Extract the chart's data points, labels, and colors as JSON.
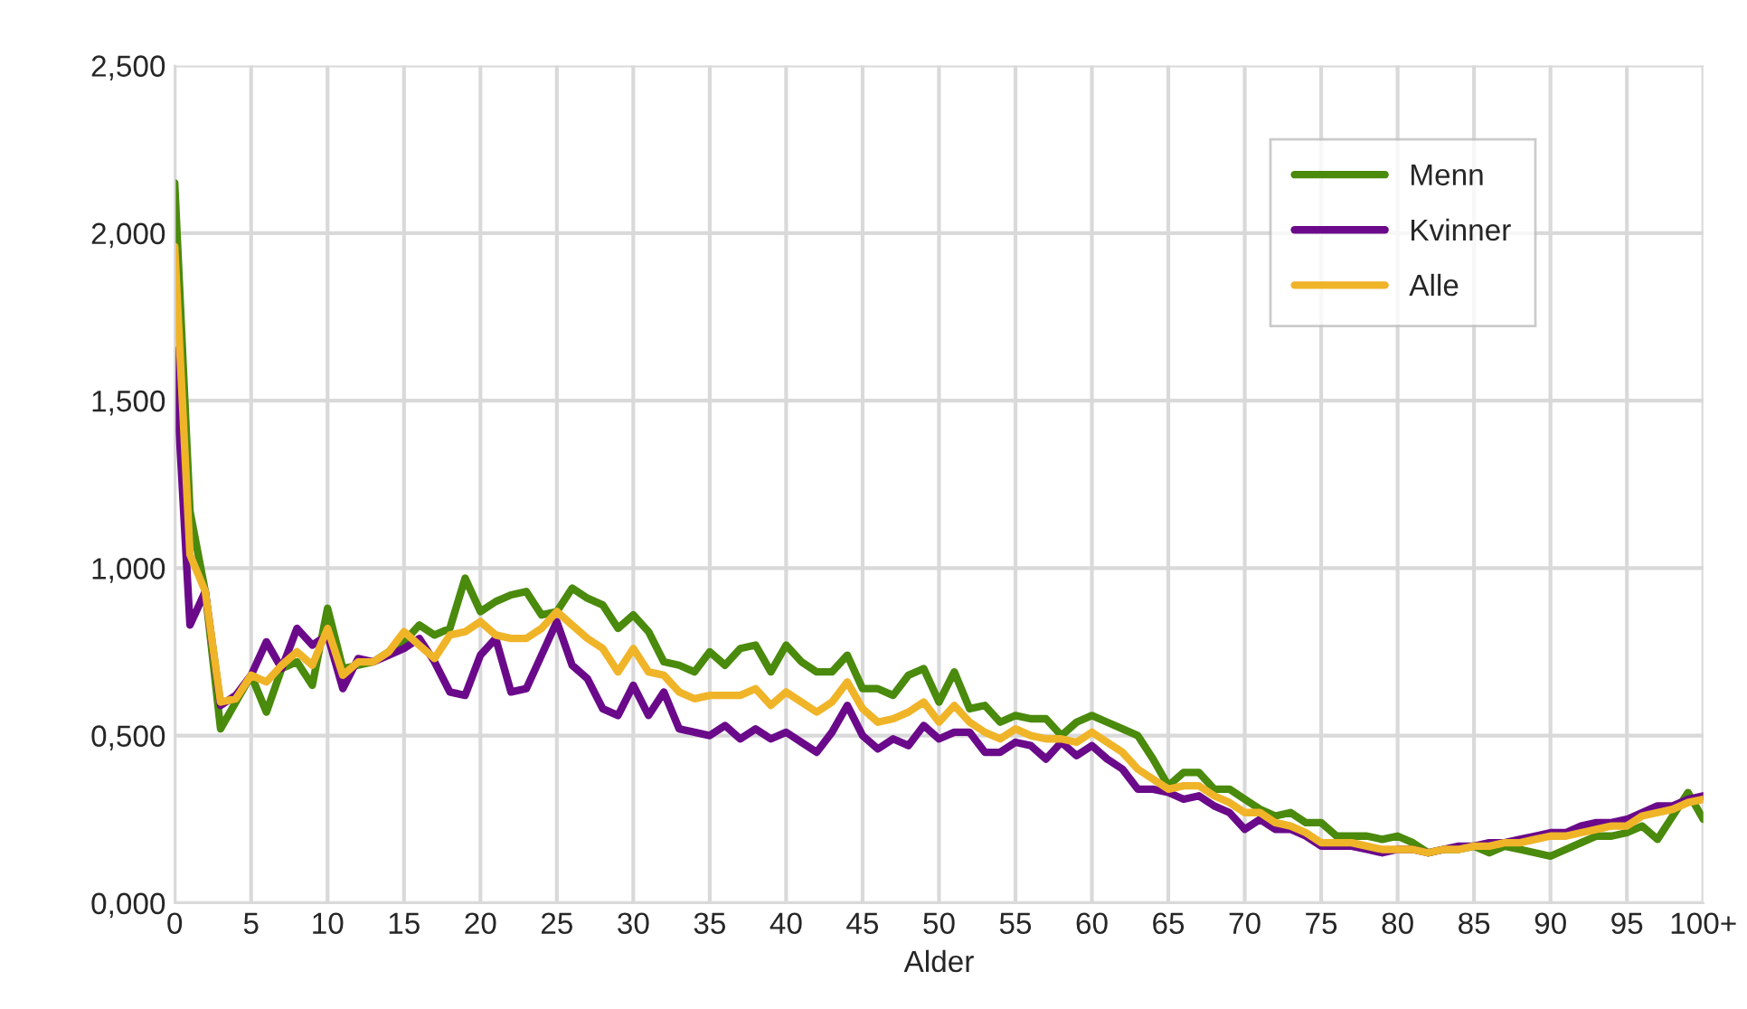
{
  "chart_data": {
    "type": "line",
    "xlabel": "Alder",
    "categories": [
      "0",
      null,
      null,
      null,
      null,
      "5",
      null,
      null,
      null,
      null,
      "10",
      null,
      null,
      null,
      null,
      "15",
      null,
      null,
      null,
      null,
      "20",
      null,
      null,
      null,
      null,
      "25",
      null,
      null,
      null,
      null,
      "30",
      null,
      null,
      null,
      null,
      "35",
      null,
      null,
      null,
      null,
      "40",
      null,
      null,
      null,
      null,
      "45",
      null,
      null,
      null,
      null,
      "50",
      null,
      null,
      null,
      null,
      "55",
      null,
      null,
      null,
      null,
      "60",
      null,
      null,
      null,
      null,
      "65",
      null,
      null,
      null,
      null,
      "70",
      null,
      null,
      null,
      null,
      "75",
      null,
      null,
      null,
      null,
      "80",
      null,
      null,
      null,
      null,
      "85",
      null,
      null,
      null,
      null,
      "90",
      null,
      null,
      null,
      null,
      "95",
      null,
      null,
      null,
      null,
      "100+"
    ],
    "series": [
      {
        "name": "Menn",
        "color": "#4a8a0c",
        "values": [
          2.15,
          1.17,
          0.93,
          0.52,
          0.6,
          0.68,
          0.57,
          0.7,
          0.72,
          0.65,
          0.88,
          0.7,
          0.71,
          0.72,
          0.75,
          0.78,
          0.83,
          0.8,
          0.82,
          0.97,
          0.87,
          0.9,
          0.92,
          0.93,
          0.86,
          0.87,
          0.94,
          0.91,
          0.89,
          0.82,
          0.86,
          0.81,
          0.72,
          0.71,
          0.69,
          0.75,
          0.71,
          0.76,
          0.77,
          0.69,
          0.77,
          0.72,
          0.69,
          0.69,
          0.74,
          0.64,
          0.64,
          0.62,
          0.68,
          0.7,
          0.6,
          0.69,
          0.58,
          0.59,
          0.54,
          0.56,
          0.55,
          0.55,
          0.5,
          0.54,
          0.56,
          0.54,
          0.52,
          0.5,
          0.43,
          0.35,
          0.39,
          0.39,
          0.34,
          0.34,
          0.31,
          0.28,
          0.26,
          0.27,
          0.24,
          0.24,
          0.2,
          0.2,
          0.2,
          0.19,
          0.2,
          0.18,
          0.15,
          0.16,
          0.16,
          0.17,
          0.15,
          0.17,
          0.16,
          0.15,
          0.14,
          0.16,
          0.18,
          0.2,
          0.2,
          0.21,
          0.23,
          0.19,
          0.26,
          0.33,
          0.25
        ]
      },
      {
        "name": "Kvinner",
        "color": "#6a0a8a",
        "values": [
          1.65,
          0.83,
          0.93,
          0.59,
          0.62,
          0.68,
          0.78,
          0.7,
          0.82,
          0.77,
          0.8,
          0.64,
          0.73,
          0.72,
          0.74,
          0.76,
          0.79,
          0.72,
          0.63,
          0.62,
          0.74,
          0.79,
          0.63,
          0.64,
          0.74,
          0.84,
          0.71,
          0.67,
          0.58,
          0.56,
          0.65,
          0.56,
          0.63,
          0.52,
          0.51,
          0.5,
          0.53,
          0.49,
          0.52,
          0.49,
          0.51,
          0.48,
          0.45,
          0.51,
          0.59,
          0.5,
          0.46,
          0.49,
          0.47,
          0.53,
          0.49,
          0.51,
          0.51,
          0.45,
          0.45,
          0.48,
          0.47,
          0.43,
          0.48,
          0.44,
          0.47,
          0.43,
          0.4,
          0.34,
          0.34,
          0.33,
          0.31,
          0.32,
          0.29,
          0.27,
          0.22,
          0.25,
          0.22,
          0.22,
          0.2,
          0.17,
          0.17,
          0.17,
          0.16,
          0.15,
          0.16,
          0.16,
          0.15,
          0.16,
          0.17,
          0.17,
          0.18,
          0.18,
          0.19,
          0.2,
          0.21,
          0.21,
          0.23,
          0.24,
          0.24,
          0.25,
          0.27,
          0.29,
          0.29,
          0.31,
          0.32
        ]
      },
      {
        "name": "Alle",
        "color": "#f0b428",
        "values": [
          1.96,
          1.04,
          0.93,
          0.6,
          0.61,
          0.68,
          0.66,
          0.71,
          0.75,
          0.71,
          0.82,
          0.68,
          0.72,
          0.72,
          0.75,
          0.81,
          0.77,
          0.73,
          0.8,
          0.81,
          0.84,
          0.8,
          0.79,
          0.79,
          0.82,
          0.87,
          0.83,
          0.79,
          0.76,
          0.69,
          0.76,
          0.69,
          0.68,
          0.63,
          0.61,
          0.62,
          0.62,
          0.62,
          0.64,
          0.59,
          0.63,
          0.6,
          0.57,
          0.6,
          0.66,
          0.58,
          0.54,
          0.55,
          0.57,
          0.6,
          0.54,
          0.59,
          0.54,
          0.51,
          0.49,
          0.52,
          0.5,
          0.49,
          0.49,
          0.48,
          0.51,
          0.48,
          0.45,
          0.4,
          0.37,
          0.34,
          0.35,
          0.35,
          0.32,
          0.3,
          0.27,
          0.27,
          0.24,
          0.23,
          0.21,
          0.18,
          0.18,
          0.18,
          0.17,
          0.16,
          0.16,
          0.16,
          0.15,
          0.16,
          0.16,
          0.17,
          0.17,
          0.18,
          0.18,
          0.19,
          0.2,
          0.2,
          0.21,
          0.22,
          0.23,
          0.23,
          0.26,
          0.27,
          0.28,
          0.3,
          0.31
        ]
      }
    ],
    "ylim": [
      0,
      2.5
    ],
    "yticks": [
      {
        "value": 0,
        "label": "0,000"
      },
      {
        "value": 0.5,
        "label": "0,500"
      },
      {
        "value": 1,
        "label": "1,000"
      },
      {
        "value": 1.5,
        "label": "1,500"
      },
      {
        "value": 2,
        "label": "2,000"
      },
      {
        "value": 2.5,
        "label": "2,500"
      }
    ],
    "grid": true,
    "legend": "top right",
    "marker": "none",
    "line_style": "solid"
  }
}
